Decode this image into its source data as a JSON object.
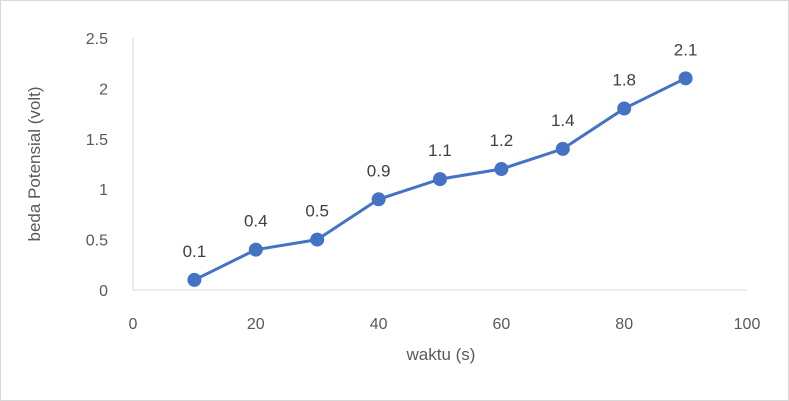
{
  "chart_data": {
    "type": "line",
    "title": "",
    "xlabel": "waktu (s)",
    "ylabel": "beda Potensial (volt)",
    "xlim": [
      0,
      100
    ],
    "ylim": [
      0,
      2.5
    ],
    "xticks": [
      "0",
      "20",
      "40",
      "60",
      "80",
      "100"
    ],
    "yticks": [
      "0",
      "0.5",
      "1",
      "1.5",
      "2",
      "2.5"
    ],
    "grid": false,
    "legend": "none",
    "series": [
      {
        "color": "#4472c4",
        "x": [
          10,
          20,
          30,
          40,
          50,
          60,
          70,
          80,
          90
        ],
        "y": [
          0.1,
          0.4,
          0.5,
          0.9,
          1.1,
          1.2,
          1.4,
          1.8,
          2.1
        ],
        "labels": [
          "0.1",
          "0.4",
          "0.5",
          "0.9",
          "1.1",
          "1.2",
          "1.4",
          "1.8",
          "2.1"
        ]
      }
    ]
  }
}
